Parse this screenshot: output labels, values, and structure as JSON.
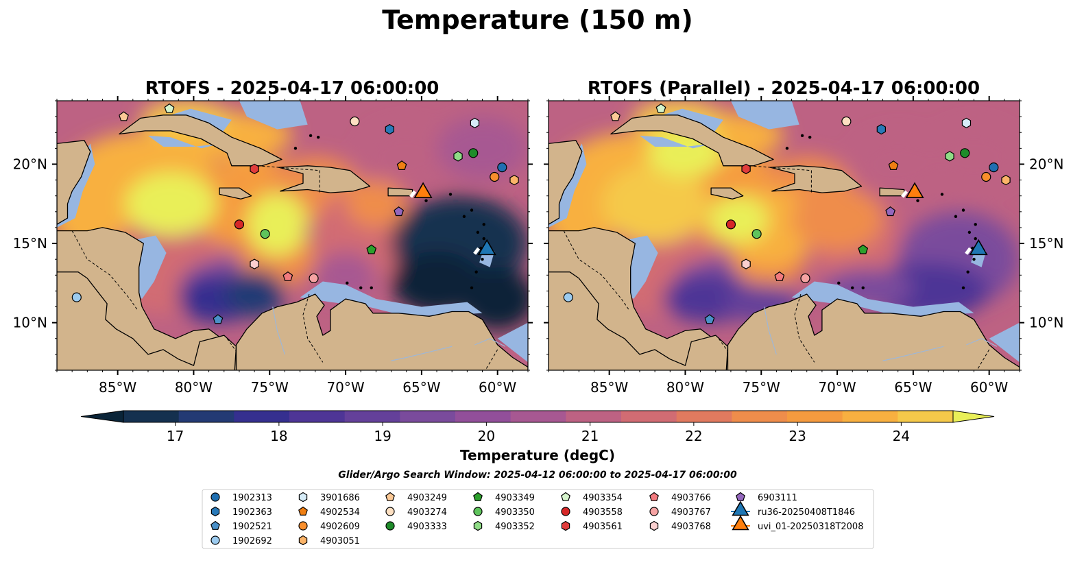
{
  "suptitle": "Temperature (150 m)",
  "panels": [
    {
      "title": "RTOFS - 2025-04-17 06:00:00",
      "variant": "operational"
    },
    {
      "title": "RTOFS (Parallel) - 2025-04-17 06:00:00",
      "variant": "parallel"
    }
  ],
  "map": {
    "lon_range": [
      -89,
      -58
    ],
    "lat_range": [
      7,
      24
    ],
    "lon_ticks": [
      {
        "value": -85,
        "label": "85°W"
      },
      {
        "value": -80,
        "label": "80°W"
      },
      {
        "value": -75,
        "label": "75°W"
      },
      {
        "value": -70,
        "label": "70°W"
      },
      {
        "value": -65,
        "label": "65°W"
      },
      {
        "value": -60,
        "label": "60°W"
      }
    ],
    "lat_ticks": [
      {
        "value": 10,
        "label": "10°N"
      },
      {
        "value": 15,
        "label": "15°N"
      },
      {
        "value": 20,
        "label": "20°N"
      }
    ],
    "colors": {
      "land": "#d2b48c",
      "shallow": "#97b6e1",
      "coast": "#000000"
    }
  },
  "colorbar": {
    "label": "Temperature (degC)",
    "min": 16.5,
    "max": 24.5,
    "ticks": [
      "17",
      "18",
      "19",
      "20",
      "21",
      "22",
      "23",
      "24"
    ],
    "colors": [
      "#0a2438",
      "#14304f",
      "#233a74",
      "#352f8f",
      "#4e3596",
      "#64409a",
      "#7a4b9c",
      "#924f9a",
      "#a75892",
      "#bd6283",
      "#d16c73",
      "#e17a5f",
      "#ef8d4b",
      "#f59b3f",
      "#f8b040",
      "#f5c94a",
      "#e9ef58"
    ]
  },
  "search_window": "Glider/Argo Search Window: 2025-04-12 06:00:00 to 2025-04-17 06:00:00",
  "legend": [
    {
      "id": "1902313",
      "shape": "circle",
      "color": "#1f6fb2"
    },
    {
      "id": "1902363",
      "shape": "hexagon",
      "color": "#2979b8"
    },
    {
      "id": "1902521",
      "shape": "pentagon",
      "color": "#4a90c8"
    },
    {
      "id": "1902692",
      "shape": "circle",
      "color": "#9ccbef"
    },
    {
      "id": "3901686",
      "shape": "hexagon",
      "color": "#d6ecf8"
    },
    {
      "id": "4902534",
      "shape": "pentagon",
      "color": "#f07f13"
    },
    {
      "id": "4902609",
      "shape": "circle",
      "color": "#f98f2c"
    },
    {
      "id": "4903051",
      "shape": "hexagon",
      "color": "#fbb469"
    },
    {
      "id": "4903249",
      "shape": "pentagon",
      "color": "#fcc996"
    },
    {
      "id": "4903274",
      "shape": "circle",
      "color": "#fde0c2"
    },
    {
      "id": "4903333",
      "shape": "circle",
      "color": "#1f8c2a"
    },
    {
      "id": "4903349",
      "shape": "pentagon",
      "color": "#2ca02c"
    },
    {
      "id": "4903350",
      "shape": "circle",
      "color": "#5fc45c"
    },
    {
      "id": "4903352",
      "shape": "hexagon",
      "color": "#8fdc86"
    },
    {
      "id": "4903354",
      "shape": "pentagon",
      "color": "#d5f4cc"
    },
    {
      "id": "4903558",
      "shape": "circle",
      "color": "#d62728"
    },
    {
      "id": "4903561",
      "shape": "hexagon",
      "color": "#e03c3c"
    },
    {
      "id": "4903766",
      "shape": "pentagon",
      "color": "#f27a7e"
    },
    {
      "id": "4903767",
      "shape": "circle",
      "color": "#f6a3a3"
    },
    {
      "id": "4903768",
      "shape": "hexagon",
      "color": "#fbd0d0"
    },
    {
      "id": "6903111",
      "shape": "pentagon",
      "color": "#9467bd"
    },
    {
      "id": "ru36-20250408T1846",
      "shape": "triangle",
      "color": "#1f77b4",
      "line": "#1f77b4"
    },
    {
      "id": "uvi_01-20250318T2008",
      "shape": "triangle",
      "color": "#ff7f0e",
      "line": "#ff7f0e"
    }
  ],
  "floats": [
    {
      "id": "1902313",
      "lon": -59.7,
      "lat": 19.8
    },
    {
      "id": "1902363",
      "lon": -67.1,
      "lat": 22.2
    },
    {
      "id": "1902521",
      "lon": -78.4,
      "lat": 10.2
    },
    {
      "id": "1902692",
      "lon": -87.7,
      "lat": 11.6
    },
    {
      "id": "3901686",
      "lon": -61.5,
      "lat": 22.6
    },
    {
      "id": "4902534",
      "lon": -66.3,
      "lat": 19.9
    },
    {
      "id": "4902609",
      "lon": -60.2,
      "lat": 19.2
    },
    {
      "id": "4903051",
      "lon": -58.9,
      "lat": 19.0
    },
    {
      "id": "4903249",
      "lon": -84.6,
      "lat": 23.0
    },
    {
      "id": "4903274",
      "lon": -69.4,
      "lat": 22.7
    },
    {
      "id": "4903333",
      "lon": -61.6,
      "lat": 20.7
    },
    {
      "id": "4903349",
      "lon": -68.3,
      "lat": 14.6
    },
    {
      "id": "4903350",
      "lon": -75.3,
      "lat": 15.6
    },
    {
      "id": "4903352",
      "lon": -62.6,
      "lat": 20.5
    },
    {
      "id": "4903354",
      "lon": -81.6,
      "lat": 23.5
    },
    {
      "id": "4903558",
      "lon": -77.0,
      "lat": 16.2
    },
    {
      "id": "4903561",
      "lon": -76.0,
      "lat": 19.7
    },
    {
      "id": "4903766",
      "lon": -73.8,
      "lat": 12.9
    },
    {
      "id": "4903767",
      "lon": -72.1,
      "lat": 12.8
    },
    {
      "id": "4903768",
      "lon": -76.0,
      "lat": 13.7
    },
    {
      "id": "6903111",
      "lon": -66.5,
      "lat": 17.0
    },
    {
      "id": "ru36-20250408T1846",
      "lon": -60.7,
      "lat": 14.6
    },
    {
      "id": "uvi_01-20250318T2008",
      "lon": -64.9,
      "lat": 18.2
    }
  ]
}
